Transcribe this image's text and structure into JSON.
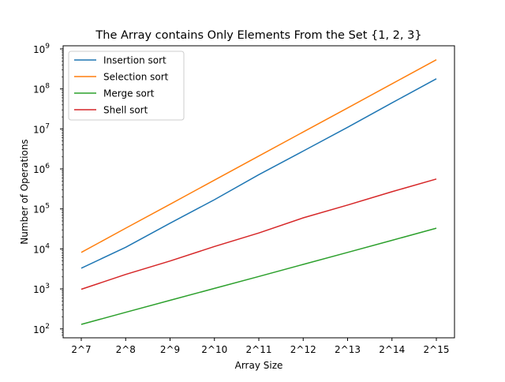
{
  "chart_data": {
    "type": "line",
    "title": "The Array contains Only Elements From the Set {1, 2, 3}",
    "xlabel": "Array Size",
    "ylabel": "Number of Operations",
    "x": [
      "2^7",
      "2^8",
      "2^9",
      "2^10",
      "2^11",
      "2^12",
      "2^13",
      "2^14",
      "2^15"
    ],
    "yscale": "log",
    "ylim": [
      60,
      1200000000
    ],
    "y_ticks": [
      {
        "value": 100,
        "base": "10",
        "exp": "2"
      },
      {
        "value": 1000,
        "base": "10",
        "exp": "3"
      },
      {
        "value": 10000,
        "base": "10",
        "exp": "4"
      },
      {
        "value": 100000,
        "base": "10",
        "exp": "5"
      },
      {
        "value": 1000000,
        "base": "10",
        "exp": "6"
      },
      {
        "value": 10000000,
        "base": "10",
        "exp": "7"
      },
      {
        "value": 100000000,
        "base": "10",
        "exp": "8"
      },
      {
        "value": 1000000000,
        "base": "10",
        "exp": "9"
      }
    ],
    "grid": false,
    "legend_position": "top-left",
    "series": [
      {
        "name": "Insertion sort",
        "color": "#1f77b4",
        "values": [
          3300,
          11000,
          44000,
          170000,
          720000,
          2800000,
          11000000,
          45000000,
          180000000
        ]
      },
      {
        "name": "Selection sort",
        "color": "#ff7f0e",
        "values": [
          8200,
          33000,
          131000,
          525000,
          2100000,
          8400000,
          33500000,
          134000000,
          537000000
        ]
      },
      {
        "name": "Merge sort",
        "color": "#2ca02c",
        "values": [
          130,
          260,
          520,
          1030,
          2050,
          4100,
          8200,
          16400,
          33000
        ]
      },
      {
        "name": "Shell sort",
        "color": "#d62728",
        "values": [
          980,
          2300,
          5000,
          11500,
          25000,
          60000,
          125000,
          270000,
          560000
        ]
      }
    ]
  }
}
